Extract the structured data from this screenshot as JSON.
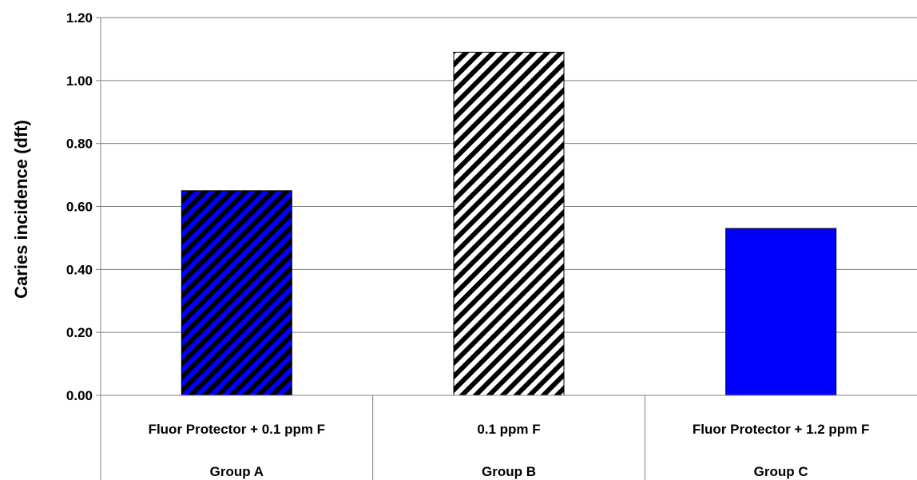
{
  "chart_data": {
    "type": "bar",
    "categories": [
      "Fluor Protector + 0.1 ppm F",
      "0.1 ppm F",
      "Fluor Protector + 1.2 ppm F"
    ],
    "groups": [
      "Group A",
      "Group B",
      "Group C"
    ],
    "values": [
      0.65,
      1.09,
      0.53
    ],
    "fills": [
      {
        "pattern": "diagonal-hatch",
        "background": "#0000ff",
        "stripe": "#000000"
      },
      {
        "pattern": "diagonal-hatch",
        "background": "#ffffff",
        "stripe": "#000000"
      },
      {
        "pattern": "solid",
        "background": "#0000ff"
      }
    ],
    "title": "",
    "xlabel": "",
    "ylabel": "Caries incidence (dft)",
    "ylim": [
      0,
      1.2
    ],
    "yticks": [
      "0.00",
      "0.20",
      "0.40",
      "0.60",
      "0.80",
      "1.00",
      "1.20"
    ],
    "grid": true,
    "legend": "none"
  }
}
